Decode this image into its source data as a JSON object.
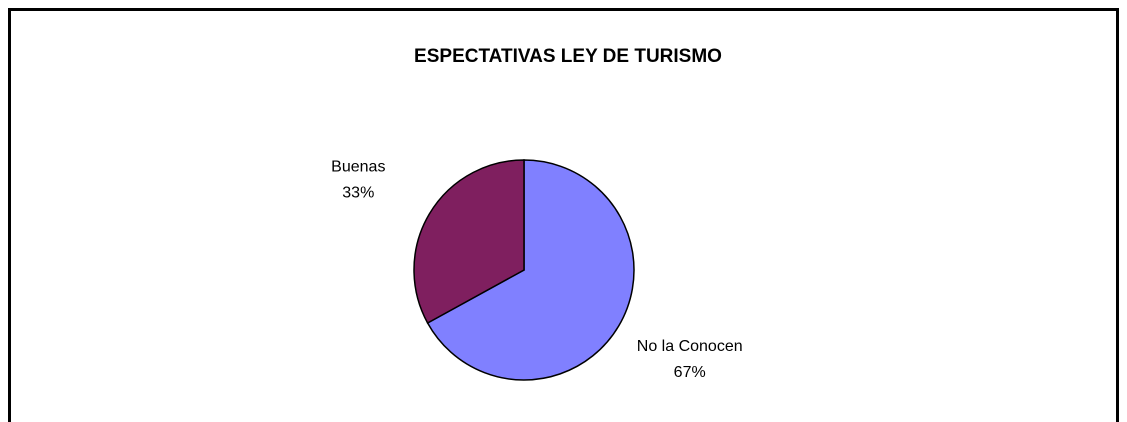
{
  "chart_data": {
    "type": "pie",
    "title": "ESPECTATIVAS LEY DE TURISMO",
    "categories": [
      "No la Conocen",
      "Buenas"
    ],
    "values": [
      67,
      33
    ],
    "value_labels": [
      "67%",
      "33%"
    ],
    "colors": [
      "#8080ff",
      "#7f1f5f"
    ]
  }
}
